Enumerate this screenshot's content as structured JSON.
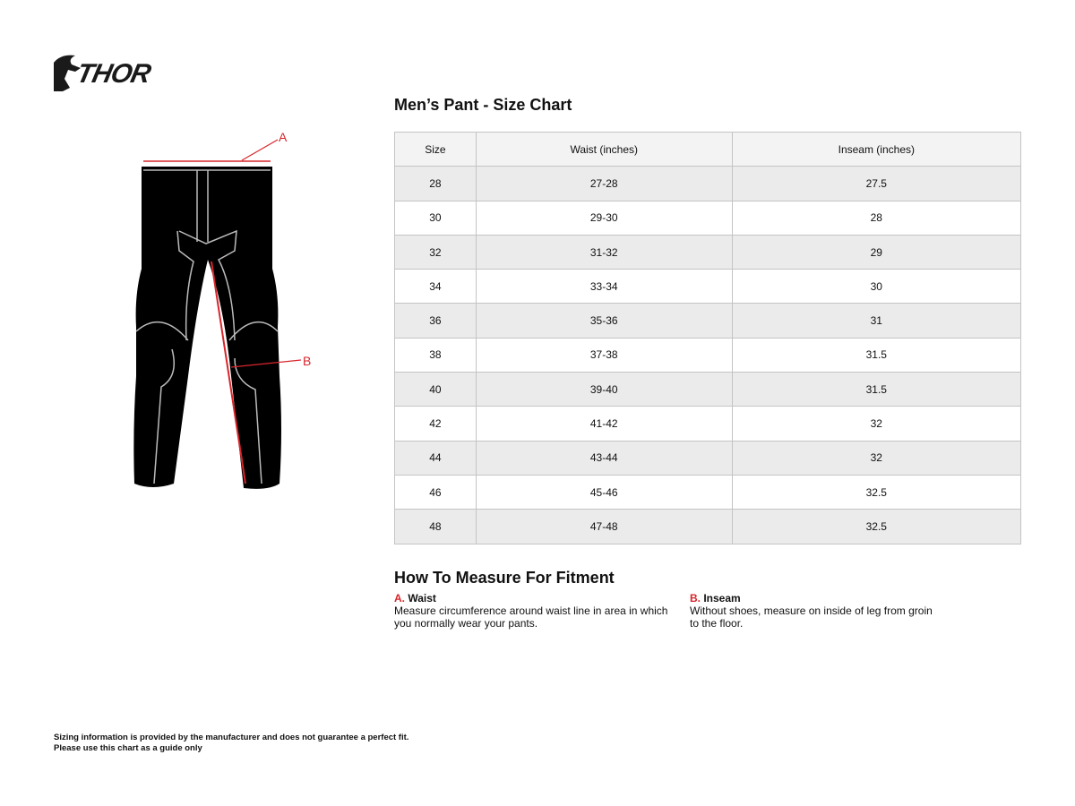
{
  "brand": {
    "logo_text": "THOR"
  },
  "title": "Men’s Pant - Size Chart",
  "diagram": {
    "label_a": "A",
    "label_b": "B",
    "accent_color": "#d7262c"
  },
  "table": {
    "headers": [
      "Size",
      "Waist (inches)",
      "Inseam (inches)"
    ],
    "rows": [
      [
        "28",
        "27-28",
        "27.5"
      ],
      [
        "30",
        "29-30",
        "28"
      ],
      [
        "32",
        "31-32",
        "29"
      ],
      [
        "34",
        "33-34",
        "30"
      ],
      [
        "36",
        "35-36",
        "31"
      ],
      [
        "38",
        "37-38",
        "31.5"
      ],
      [
        "40",
        "39-40",
        "31.5"
      ],
      [
        "42",
        "41-42",
        "32"
      ],
      [
        "44",
        "43-44",
        "32"
      ],
      [
        "46",
        "45-46",
        "32.5"
      ],
      [
        "48",
        "47-48",
        "32.5"
      ]
    ]
  },
  "measure": {
    "heading": "How To Measure For Fitment",
    "items": [
      {
        "letter": "A.",
        "name": "Waist",
        "text": "Measure circumference around waist line in area in which you normally wear your pants."
      },
      {
        "letter": "B.",
        "name": "Inseam",
        "text": "Without shoes, measure on inside of leg from groin to the floor."
      }
    ]
  },
  "footer": {
    "line1": "Sizing information is provided by the manufacturer and does not guarantee a perfect fit.",
    "line2": "Please use this chart as a guide only"
  }
}
